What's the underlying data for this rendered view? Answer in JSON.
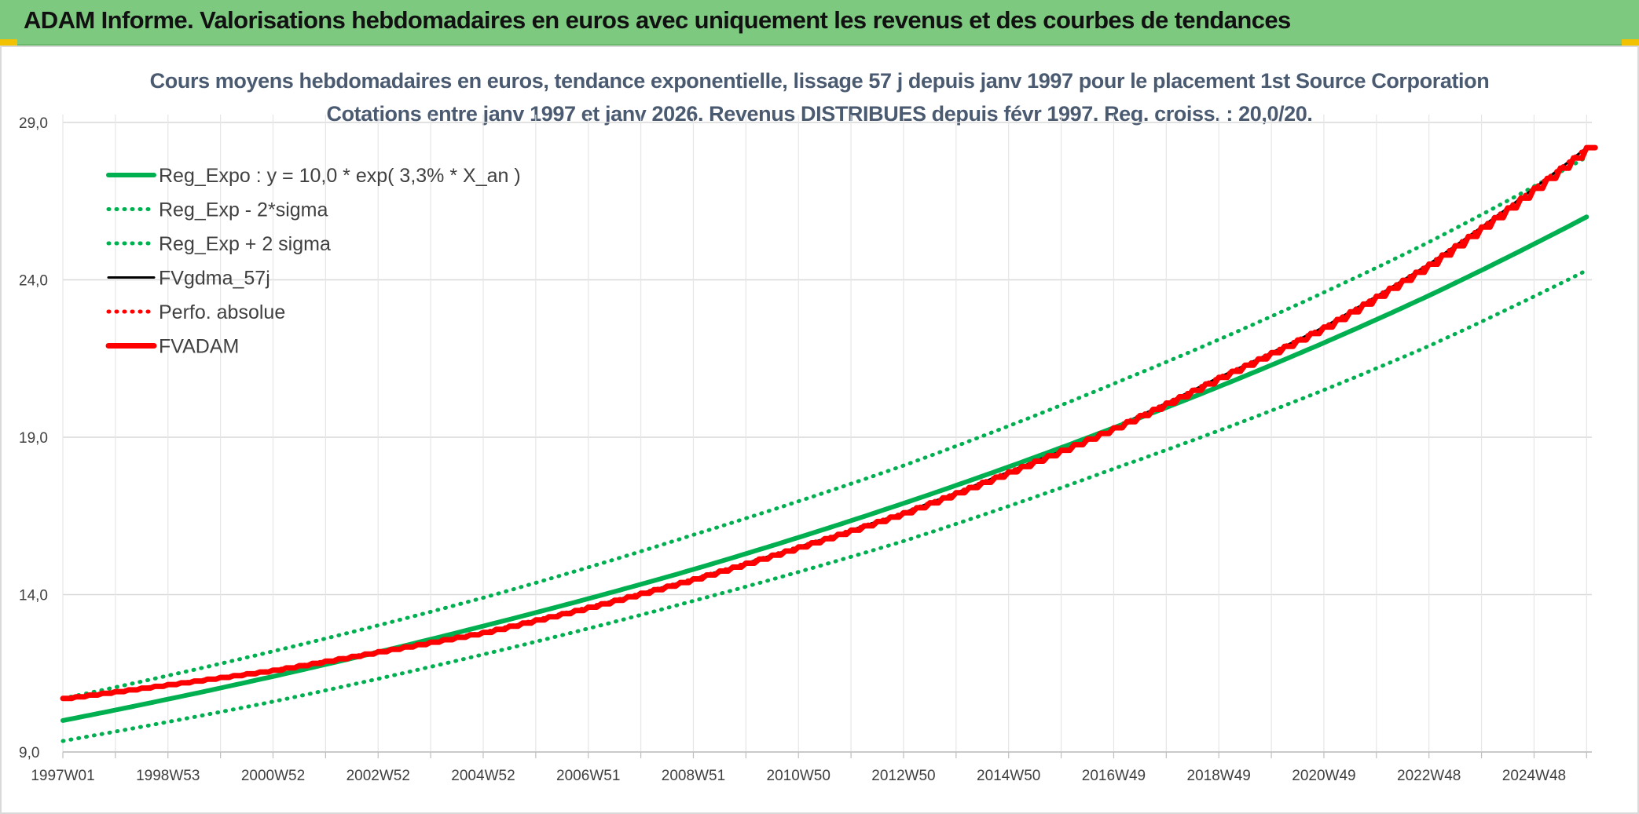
{
  "header": {
    "title": "ADAM Informe. Valorisations hebdomadaires en euros avec uniquement les revenus et des courbes de tendances"
  },
  "chart_data": {
    "type": "line",
    "title": "Cours moyens hebdomadaires en euros, tendance exponentielle, lissage 57 j depuis janv 1997 pour le placement 1st Source Corporation",
    "subtitle": "Cotations entre janv 1997 et janv 2026. Revenus DISTRIBUES depuis févr 1997. Reg. croiss. : 20,0/20.",
    "xlabel": "",
    "ylabel": "",
    "x_tick_labels": [
      "1997W01",
      "1998W53",
      "2000W52",
      "2002W52",
      "2004W52",
      "2006W51",
      "2008W51",
      "2010W50",
      "2012W50",
      "2014W50",
      "2016W49",
      "2018W49",
      "2020W49",
      "2022W48",
      "2024W48"
    ],
    "x_tick_years": [
      0,
      2,
      4,
      6,
      8,
      10,
      12,
      14,
      16,
      18,
      20,
      22,
      24,
      26,
      28
    ],
    "x_range_years": [
      0,
      29.1
    ],
    "y_tick_labels": [
      "9,0",
      "14,0",
      "19,0",
      "24,0",
      "29,0"
    ],
    "y_ticks": [
      9,
      14,
      19,
      24,
      29
    ],
    "ylim": [
      9,
      29
    ],
    "grid": true,
    "legend_position": "top-left",
    "series": [
      {
        "name": "Reg_Expo : y = 10,0 * exp( 3,3% *  X_an )",
        "color": "#00b050",
        "style": "solid",
        "x_years": [
          0,
          4,
          8,
          12,
          16,
          20,
          24,
          26,
          29
        ],
        "values": [
          10.0,
          11.4,
          13.0,
          14.8,
          16.9,
          19.3,
          22.0,
          23.5,
          26.0
        ]
      },
      {
        "name": "Reg_Exp - 2*sigma",
        "color": "#00b050",
        "style": "dotted",
        "x_years": [
          0,
          4,
          8,
          12,
          16,
          20,
          24,
          26,
          29
        ],
        "values": [
          9.35,
          10.6,
          12.1,
          13.8,
          15.7,
          18.0,
          20.5,
          21.9,
          24.3
        ]
      },
      {
        "name": "Reg_Exp + 2 sigma",
        "color": "#00b050",
        "style": "dotted",
        "x_years": [
          0,
          4,
          8,
          12,
          16,
          20,
          24,
          26,
          29
        ],
        "values": [
          10.7,
          12.2,
          13.9,
          15.9,
          18.1,
          20.7,
          23.6,
          25.2,
          27.9
        ]
      },
      {
        "name": "FVgdma_57j",
        "color": "#000000",
        "style": "solid",
        "x_years": [
          0,
          4,
          8,
          10,
          12,
          16,
          20,
          22,
          24,
          26,
          29
        ],
        "values": [
          10.7,
          11.6,
          12.8,
          13.6,
          14.5,
          16.6,
          19.3,
          20.9,
          22.5,
          24.5,
          28.2
        ]
      },
      {
        "name": "Perfo. absolue",
        "color": "#ff0000",
        "style": "dotted",
        "x_years": [
          0,
          4,
          8,
          10,
          12,
          16,
          20,
          22,
          24,
          26,
          29
        ],
        "values": [
          10.7,
          11.6,
          12.8,
          13.6,
          14.5,
          16.6,
          19.3,
          20.9,
          22.5,
          24.5,
          28.2
        ]
      },
      {
        "name": "FVADAM",
        "color": "#ff0000",
        "style": "solid",
        "x_years": [
          0,
          4,
          8,
          10,
          12,
          16,
          20,
          22,
          24,
          26,
          29
        ],
        "values": [
          10.7,
          11.6,
          12.8,
          13.6,
          14.5,
          16.6,
          19.3,
          20.9,
          22.5,
          24.5,
          28.2
        ]
      }
    ],
    "colors": {
      "header_bg": "#7dc97f",
      "title_text": "#4a5a70",
      "grid": "#d9d9d9"
    }
  }
}
